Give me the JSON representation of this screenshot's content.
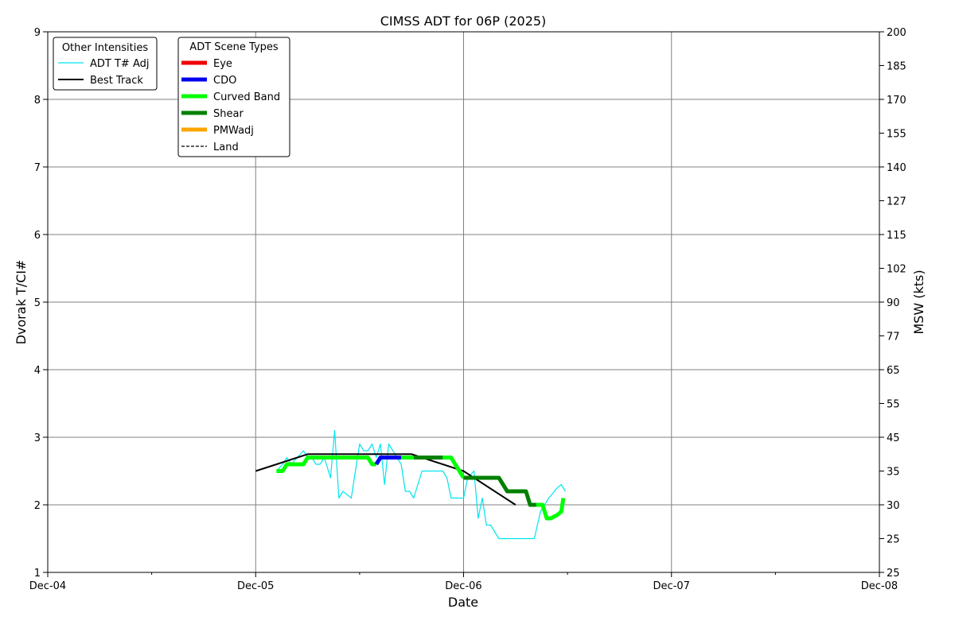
{
  "chart_data": {
    "type": "line",
    "title": "CIMSS ADT for 06P (2025)",
    "xlabel": "Date",
    "ylabel": "Dvorak T/CI#",
    "y2label": "MSW (kts)",
    "xlim": [
      "Dec-04",
      "Dec-08"
    ],
    "ylim": [
      1,
      9
    ],
    "x_ticks": [
      "Dec-04",
      "Dec-05",
      "Dec-06",
      "Dec-07",
      "Dec-08"
    ],
    "y_ticks": [
      "1",
      "2",
      "3",
      "4",
      "5",
      "6",
      "7",
      "8",
      "9"
    ],
    "y2_ticks": [
      "25",
      "25",
      "30",
      "35",
      "45",
      "55",
      "65",
      "77",
      "90",
      "102",
      "115",
      "127",
      "140",
      "155",
      "170",
      "185",
      "200"
    ],
    "grid": true,
    "legend_other": {
      "title": "Other Intensities",
      "entries": [
        {
          "label": "ADT T# Adj",
          "color": "#00e5ee",
          "style": "thin"
        },
        {
          "label": "Best Track",
          "color": "#000000",
          "style": "solid"
        }
      ]
    },
    "legend_scene": {
      "title": "ADT Scene Types",
      "entries": [
        {
          "label": "Eye",
          "color": "#ee0000",
          "style": "thick"
        },
        {
          "label": "CDO",
          "color": "#0000ee",
          "style": "thick"
        },
        {
          "label": "Curved Band",
          "color": "#00ff00",
          "style": "thick"
        },
        {
          "label": "Shear",
          "color": "#008000",
          "style": "thick"
        },
        {
          "label": "PMWadj",
          "color": "#ffa500",
          "style": "thick"
        },
        {
          "label": "Land",
          "color": "#000000",
          "style": "dashed"
        }
      ]
    },
    "series": [
      {
        "name": "ADT T# Adj",
        "color": "#00e5ee",
        "points": [
          [
            1.1,
            2.5
          ],
          [
            1.13,
            2.6
          ],
          [
            1.15,
            2.7
          ],
          [
            1.17,
            2.6
          ],
          [
            1.2,
            2.7
          ],
          [
            1.23,
            2.8
          ],
          [
            1.25,
            2.7
          ],
          [
            1.27,
            2.7
          ],
          [
            1.29,
            2.6
          ],
          [
            1.31,
            2.6
          ],
          [
            1.33,
            2.7
          ],
          [
            1.36,
            2.4
          ],
          [
            1.38,
            3.1
          ],
          [
            1.4,
            2.1
          ],
          [
            1.42,
            2.2
          ],
          [
            1.44,
            2.15
          ],
          [
            1.46,
            2.1
          ],
          [
            1.48,
            2.5
          ],
          [
            1.5,
            2.9
          ],
          [
            1.52,
            2.8
          ],
          [
            1.54,
            2.8
          ],
          [
            1.56,
            2.9
          ],
          [
            1.58,
            2.7
          ],
          [
            1.6,
            2.9
          ],
          [
            1.62,
            2.3
          ],
          [
            1.64,
            2.9
          ],
          [
            1.66,
            2.8
          ],
          [
            1.68,
            2.7
          ],
          [
            1.7,
            2.6
          ],
          [
            1.72,
            2.2
          ],
          [
            1.74,
            2.2
          ],
          [
            1.76,
            2.1
          ],
          [
            1.8,
            2.5
          ],
          [
            1.86,
            2.5
          ],
          [
            1.9,
            2.5
          ],
          [
            1.92,
            2.4
          ],
          [
            1.94,
            2.1
          ],
          [
            2.0,
            2.1
          ],
          [
            2.02,
            2.4
          ],
          [
            2.05,
            2.5
          ],
          [
            2.07,
            1.8
          ],
          [
            2.09,
            2.1
          ],
          [
            2.11,
            1.7
          ],
          [
            2.13,
            1.7
          ],
          [
            2.17,
            1.5
          ],
          [
            2.21,
            1.5
          ],
          [
            2.34,
            1.5
          ],
          [
            2.37,
            1.9
          ],
          [
            2.41,
            2.1
          ],
          [
            2.45,
            2.25
          ],
          [
            2.47,
            2.3
          ],
          [
            2.49,
            2.2
          ]
        ]
      },
      {
        "name": "Best Track",
        "color": "#000000",
        "points": [
          [
            1.0,
            2.5
          ],
          [
            1.25,
            2.75
          ],
          [
            1.75,
            2.75
          ],
          [
            2.0,
            2.5
          ],
          [
            2.25,
            2.0
          ]
        ]
      }
    ],
    "scene_segments": [
      {
        "scene": "Curved Band",
        "color": "#00ff00",
        "points": [
          [
            1.1,
            2.5
          ],
          [
            1.13,
            2.5
          ],
          [
            1.15,
            2.6
          ],
          [
            1.2,
            2.6
          ],
          [
            1.23,
            2.6
          ],
          [
            1.25,
            2.7
          ],
          [
            1.5,
            2.7
          ],
          [
            1.54,
            2.7
          ],
          [
            1.56,
            2.6
          ],
          [
            1.58,
            2.6
          ]
        ]
      },
      {
        "scene": "CDO",
        "color": "#0000ee",
        "points": [
          [
            1.58,
            2.6
          ],
          [
            1.6,
            2.7
          ],
          [
            1.66,
            2.7
          ],
          [
            1.7,
            2.7
          ]
        ]
      },
      {
        "scene": "Curved Band",
        "color": "#00ff00",
        "points": [
          [
            1.7,
            2.7
          ],
          [
            1.76,
            2.7
          ]
        ]
      },
      {
        "scene": "Shear",
        "color": "#008000",
        "points": [
          [
            1.76,
            2.7
          ],
          [
            1.9,
            2.7
          ]
        ]
      },
      {
        "scene": "Curved Band",
        "color": "#00ff00",
        "points": [
          [
            1.9,
            2.7
          ],
          [
            1.94,
            2.7
          ],
          [
            1.96,
            2.6
          ],
          [
            1.98,
            2.5
          ],
          [
            2.0,
            2.4
          ]
        ]
      },
      {
        "scene": "Shear",
        "color": "#008000",
        "points": [
          [
            2.0,
            2.4
          ],
          [
            2.17,
            2.4
          ],
          [
            2.21,
            2.2
          ],
          [
            2.3,
            2.2
          ],
          [
            2.32,
            2.0
          ],
          [
            2.35,
            2.0
          ]
        ]
      },
      {
        "scene": "Curved Band",
        "color": "#00ff00",
        "points": [
          [
            2.35,
            2.0
          ],
          [
            2.38,
            2.0
          ],
          [
            2.4,
            1.8
          ],
          [
            2.42,
            1.8
          ],
          [
            2.45,
            1.85
          ],
          [
            2.47,
            1.9
          ],
          [
            2.48,
            2.1
          ]
        ]
      }
    ]
  }
}
